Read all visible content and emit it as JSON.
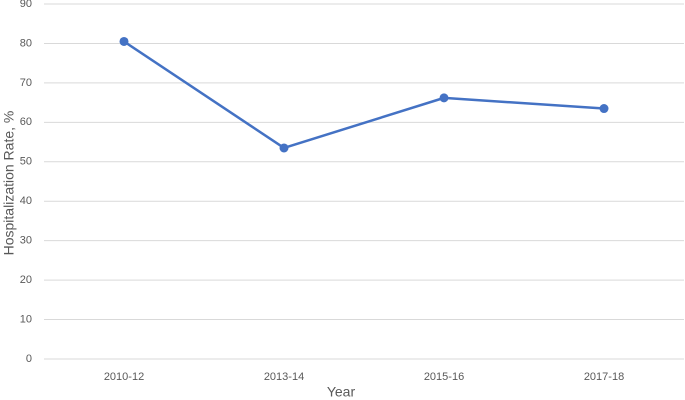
{
  "chart_data": {
    "type": "line",
    "x_label": "Year",
    "y_label": "Hospitalization Rate, %",
    "categories": [
      "2010-12",
      "2013-14",
      "2015-16",
      "2017-18"
    ],
    "values": [
      80.5,
      53.5,
      66.2,
      63.5
    ],
    "color": "#4472c4",
    "ylim": [
      0,
      90
    ],
    "yticks": [
      0,
      10,
      20,
      30,
      40,
      50,
      60,
      70,
      80,
      90
    ],
    "grid": true
  }
}
